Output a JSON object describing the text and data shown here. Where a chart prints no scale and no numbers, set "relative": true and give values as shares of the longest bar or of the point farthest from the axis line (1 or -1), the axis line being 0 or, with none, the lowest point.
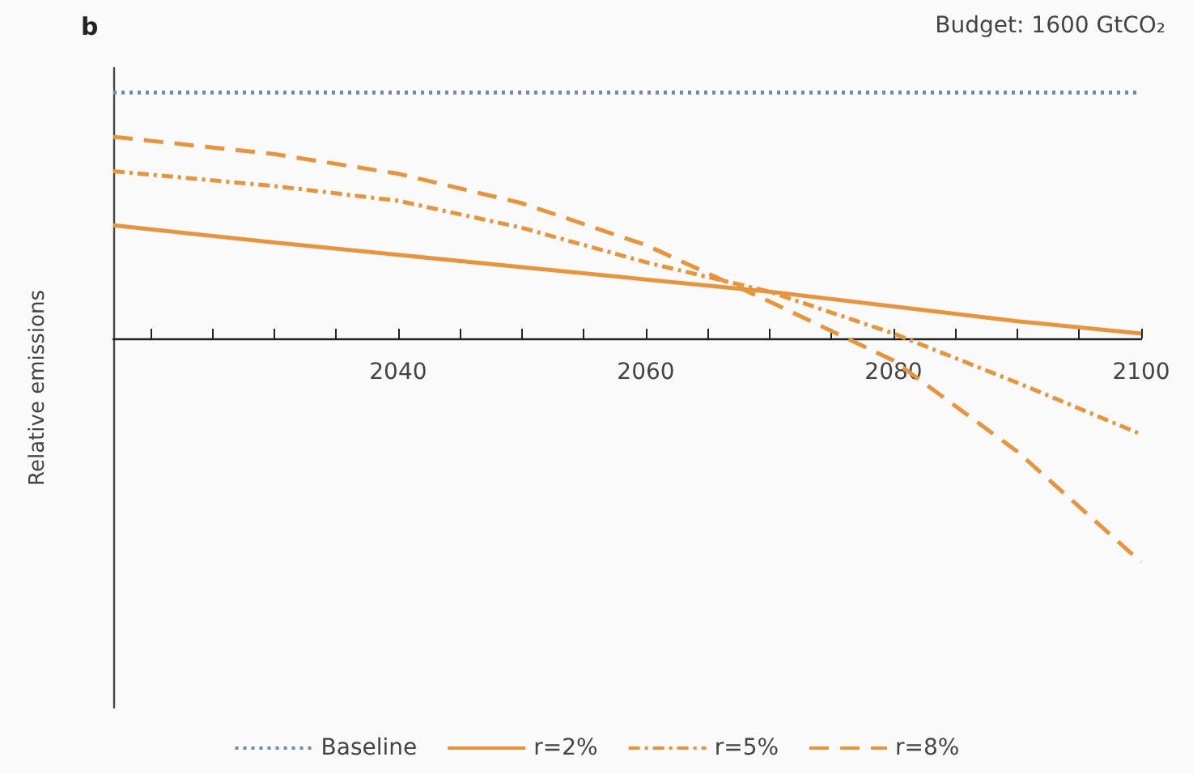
{
  "chart_data": {
    "type": "line",
    "title": "b",
    "annotations": [
      "Budget: 1600 GtCO₂"
    ],
    "ylabel": "Relative emissions",
    "relative": true,
    "legend": "bottom",
    "grid": false,
    "marker": "none",
    "xlim": [
      2017,
      2100
    ],
    "xticks": [
      {
        "value": 2020,
        "label": null
      },
      {
        "value": 2025,
        "label": null
      },
      {
        "value": 2030,
        "label": null
      },
      {
        "value": 2035,
        "label": null
      },
      2040,
      {
        "value": 2045,
        "label": null
      },
      {
        "value": 2050,
        "label": null
      },
      {
        "value": 2055,
        "label": null
      },
      2060,
      {
        "value": 2065,
        "label": null
      },
      {
        "value": 2070,
        "label": null
      },
      {
        "value": 2075,
        "label": null
      },
      2080,
      {
        "value": 2085,
        "label": null
      },
      {
        "value": 2090,
        "label": null
      },
      {
        "value": 2095,
        "label": null
      },
      2100
    ],
    "x": [
      2017,
      2030,
      2040,
      2050,
      2060,
      2070,
      2080,
      2090,
      2100
    ],
    "series": [
      {
        "name": "Baseline",
        "color": "#6f8ea3",
        "line_style": "dotted",
        "values": [
          1,
          1,
          1,
          1,
          1,
          1,
          1,
          1,
          1
        ]
      },
      {
        "name": "r=2%",
        "color": "#e8943a",
        "line_style": "solid",
        "values": [
          0.46,
          0.39,
          0.34,
          0.29,
          0.24,
          0.19,
          0.13,
          0.07,
          0.02
        ]
      },
      {
        "name": "r=5%",
        "color": "#e8943a",
        "line_style": "dashdot",
        "values": [
          0.68,
          0.62,
          0.56,
          0.45,
          0.31,
          0.19,
          0.02,
          -0.18,
          -0.39
        ]
      },
      {
        "name": "r=8%",
        "color": "#e8943a",
        "line_style": "dashed",
        "values": [
          0.82,
          0.75,
          0.67,
          0.55,
          0.38,
          0.15,
          -0.09,
          -0.46,
          -0.91
        ]
      }
    ]
  }
}
